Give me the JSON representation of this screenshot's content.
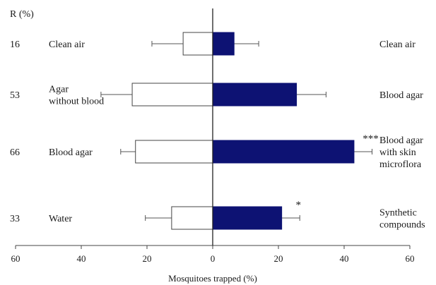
{
  "chart_data": {
    "type": "bar",
    "orientation": "horizontal-diverging",
    "xlabel": "Mosquitoes trapped (%)",
    "r_header": "R (%)",
    "xlim": [
      -60,
      60
    ],
    "x_ticks": [
      {
        "value": -60,
        "label": "60"
      },
      {
        "value": -40,
        "label": "40"
      },
      {
        "value": -20,
        "label": "20"
      },
      {
        "value": 0,
        "label": "0"
      },
      {
        "value": 20,
        "label": "20"
      },
      {
        "value": 40,
        "label": "40"
      },
      {
        "value": 60,
        "label": "60"
      }
    ],
    "colors": {
      "left_fill": "#ffffff",
      "right_fill": "#0d1273",
      "stroke": "#444444"
    },
    "rows": [
      {
        "r": "16",
        "left_label": [
          "Clean air"
        ],
        "left_value": 9,
        "left_error": 9.5,
        "right_label": [
          "Clean air"
        ],
        "right_value": 6.5,
        "right_error": 7.5,
        "significance": ""
      },
      {
        "r": "53",
        "left_label": [
          "Agar",
          "without blood"
        ],
        "left_value": 24.5,
        "left_error": 9.5,
        "right_label": [
          "Blood agar"
        ],
        "right_value": 25.5,
        "right_error": 9,
        "significance": ""
      },
      {
        "r": "66",
        "left_label": [
          "Blood agar"
        ],
        "left_value": 23.5,
        "left_error": 4.5,
        "right_label": [
          "Blood agar",
          "with skin",
          "microflora"
        ],
        "right_value": 43,
        "right_error": 5.5,
        "significance": "***"
      },
      {
        "r": "33",
        "left_label": [
          "Water"
        ],
        "left_value": 12.5,
        "left_error": 8,
        "right_label": [
          "Synthetic",
          "compounds"
        ],
        "right_value": 21,
        "right_error": 5.5,
        "significance": "*"
      }
    ]
  }
}
